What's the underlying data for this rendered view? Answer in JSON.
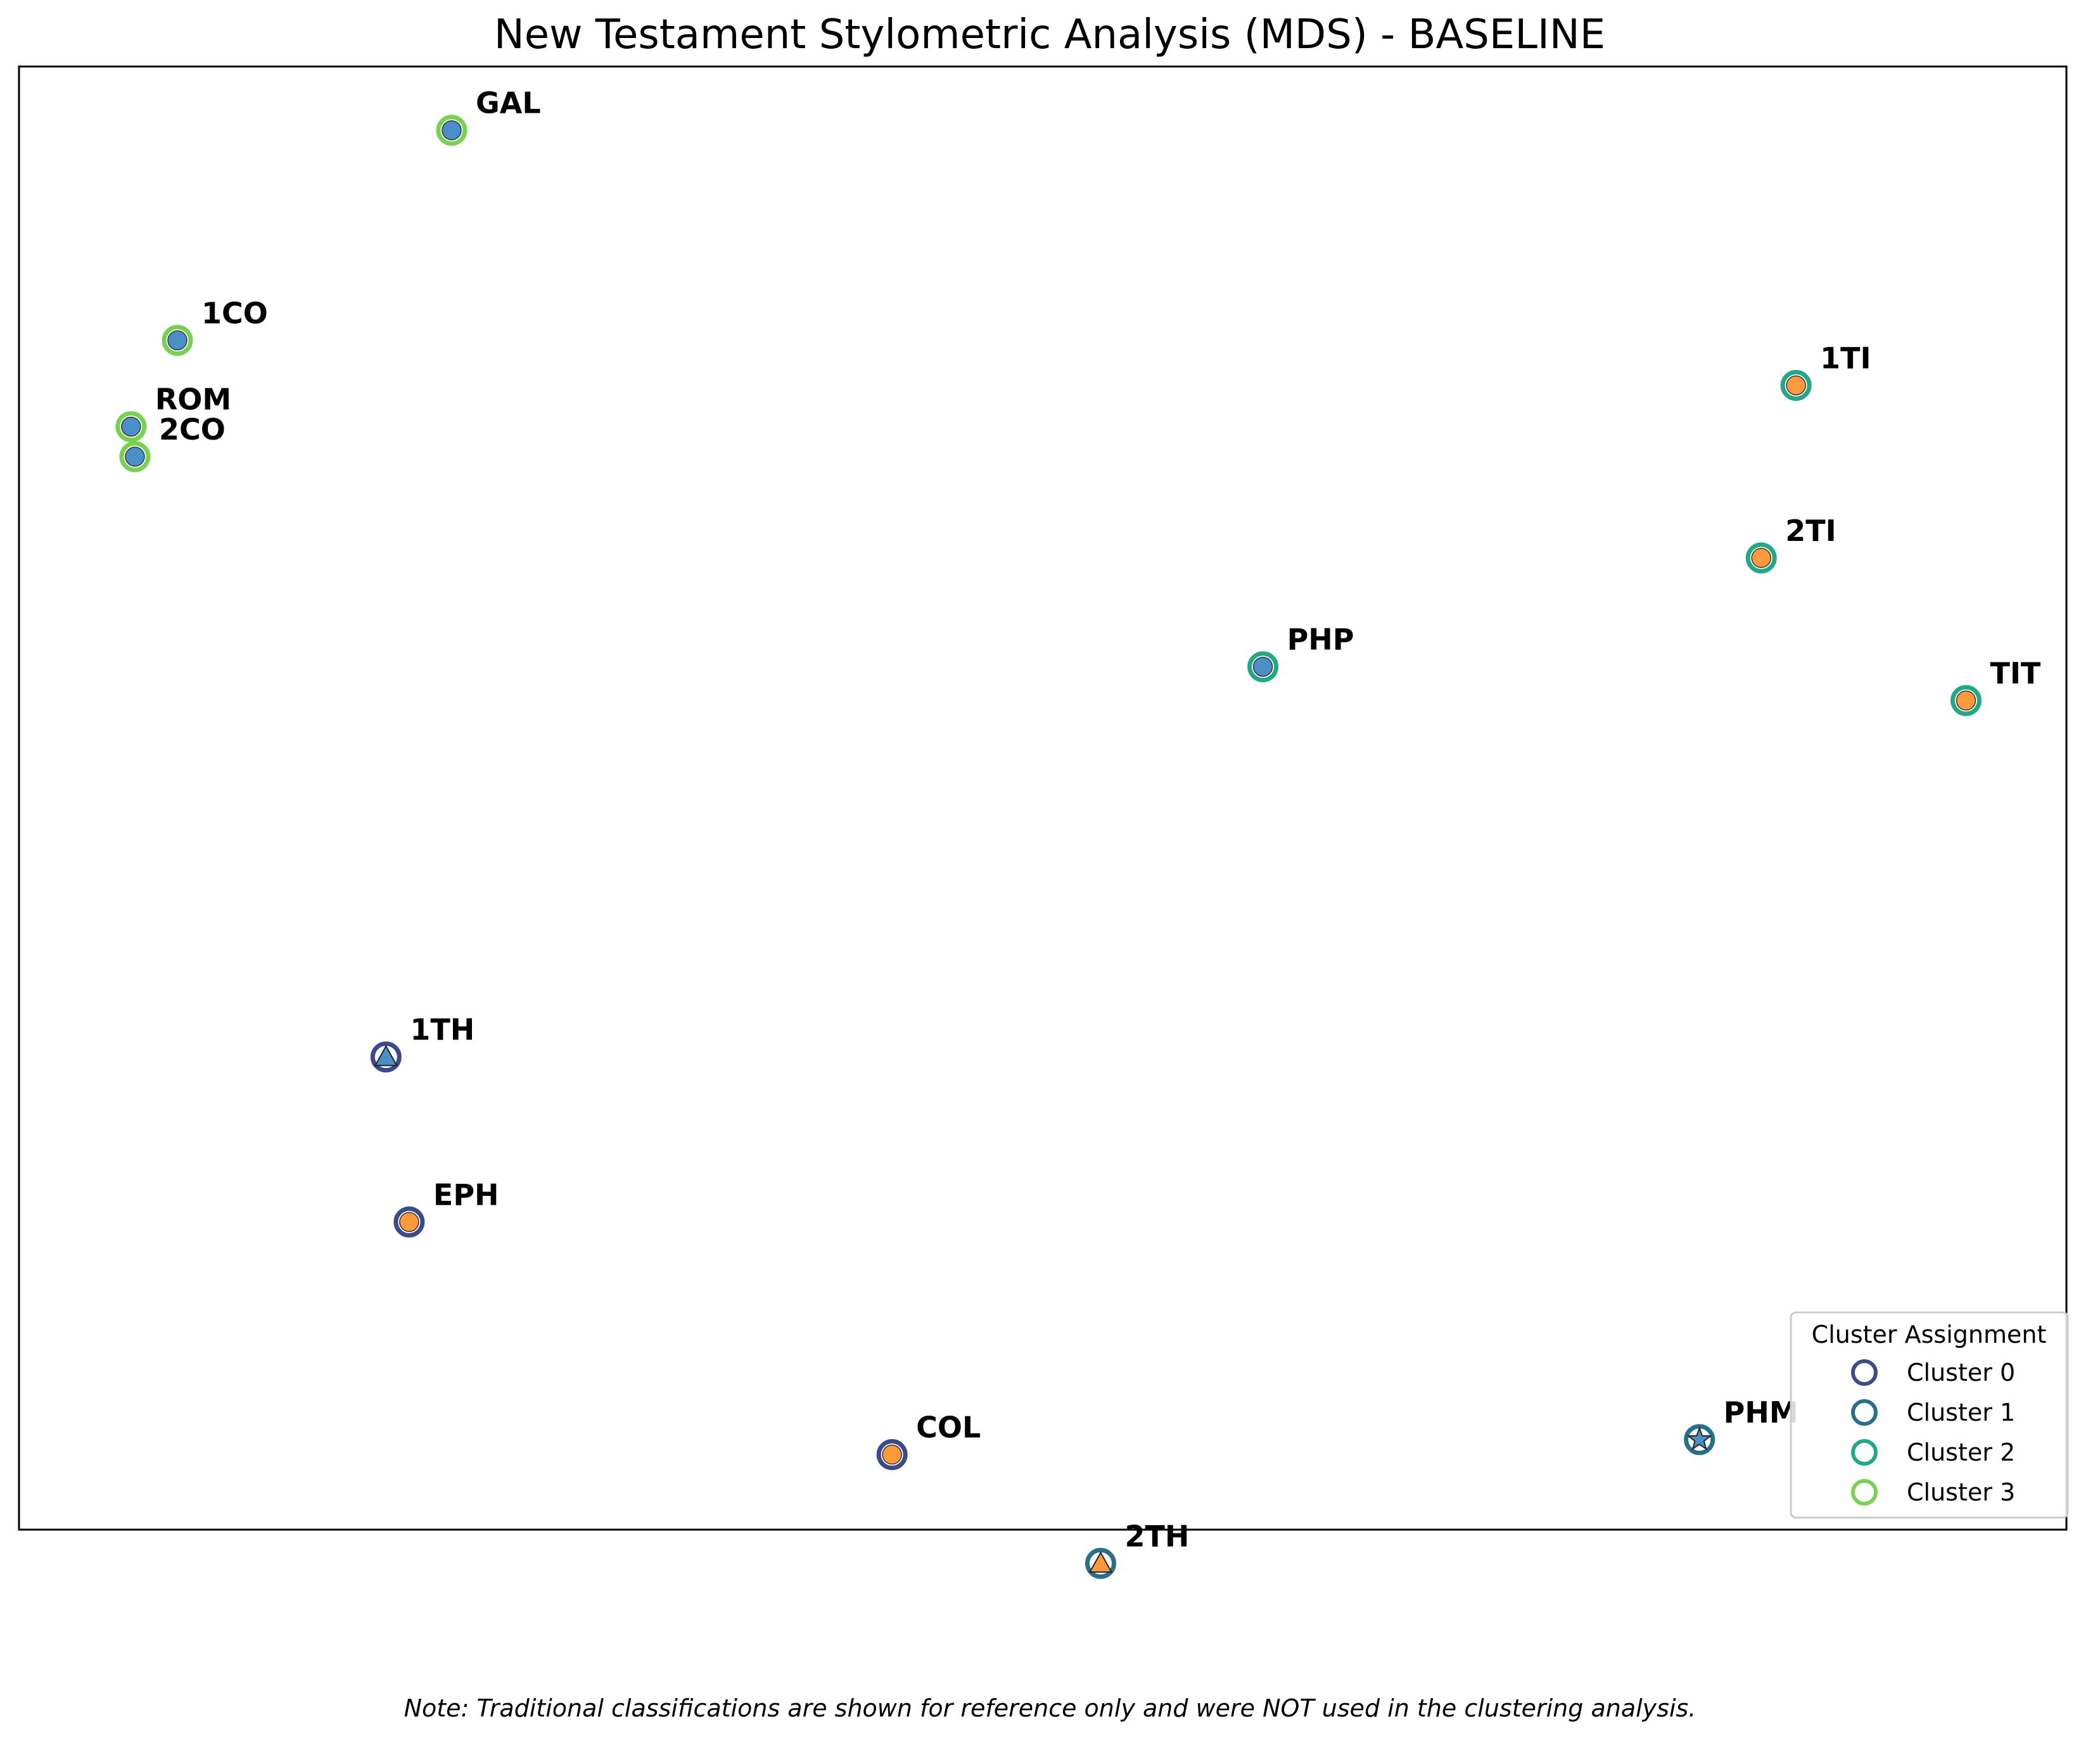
{
  "chart_data": {
    "type": "scatter",
    "title": "New Testament Stylometric Analysis (MDS) - BASELINE",
    "xlabel": "",
    "ylabel": "",
    "xlim": [
      -3.5,
      49.5
    ],
    "ylim": [
      -35.5,
      3.5
    ],
    "grid": false,
    "legend": {
      "title": "Cluster Assignment",
      "placement": "lower-right",
      "entries": [
        "Cluster 0",
        "Cluster 1",
        "Cluster 2",
        "Cluster 3"
      ]
    },
    "cluster_colors": [
      "#3b4a8a",
      "#276f8a",
      "#22a884",
      "#7ad151"
    ],
    "fill_colors": {
      "blue": "#4a8fc8",
      "orange": "#ff9a3c"
    },
    "points": [
      {
        "label": "GAL",
        "x": 7.7,
        "y": 1.8,
        "cluster": 3,
        "fill": "blue",
        "marker": "circle"
      },
      {
        "label": "1CO",
        "x": 0.6,
        "y": -3.8,
        "cluster": 3,
        "fill": "blue",
        "marker": "circle"
      },
      {
        "label": "ROM",
        "x": -0.6,
        "y": -6.1,
        "cluster": 3,
        "fill": "blue",
        "marker": "circle"
      },
      {
        "label": "2CO",
        "x": -0.5,
        "y": -6.9,
        "cluster": 3,
        "fill": "blue",
        "marker": "circle"
      },
      {
        "label": "1TI",
        "x": 42.5,
        "y": -5.0,
        "cluster": 2,
        "fill": "orange",
        "marker": "circle"
      },
      {
        "label": "2TI",
        "x": 41.6,
        "y": -9.6,
        "cluster": 2,
        "fill": "orange",
        "marker": "circle"
      },
      {
        "label": "PHP",
        "x": 28.7,
        "y": -12.5,
        "cluster": 2,
        "fill": "blue",
        "marker": "circle"
      },
      {
        "label": "TIT",
        "x": 46.9,
        "y": -13.4,
        "cluster": 2,
        "fill": "orange",
        "marker": "circle"
      },
      {
        "label": "1TH",
        "x": 6.0,
        "y": -22.9,
        "cluster": 0,
        "fill": "blue",
        "marker": "triangle"
      },
      {
        "label": "EPH",
        "x": 6.6,
        "y": -27.3,
        "cluster": 0,
        "fill": "orange",
        "marker": "circle"
      },
      {
        "label": "COL",
        "x": 19.1,
        "y": -33.5,
        "cluster": 0,
        "fill": "orange",
        "marker": "circle"
      },
      {
        "label": "2TH",
        "x": 24.5,
        "y": -36.4,
        "cluster": 1,
        "fill": "orange",
        "marker": "triangle"
      },
      {
        "label": "PHM",
        "x": 40.0,
        "y": -33.1,
        "cluster": 1,
        "fill": "blue",
        "marker": "star"
      }
    ]
  },
  "note": "Note: Traditional classifications are shown for reference only and were NOT used in the clustering analysis."
}
